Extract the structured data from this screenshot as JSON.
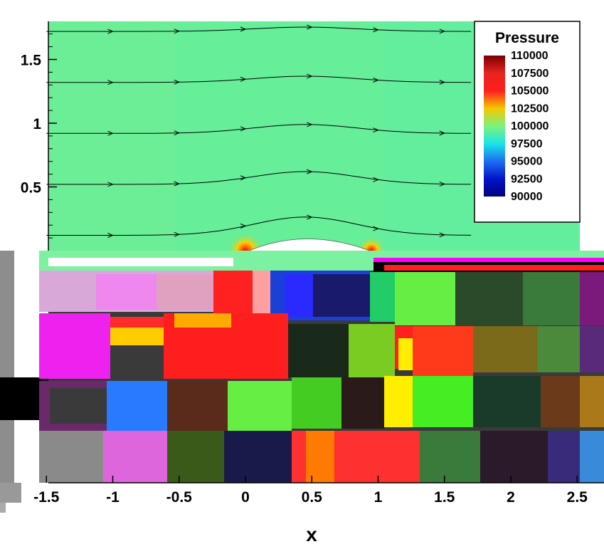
{
  "chart_data": {
    "type": "heatmap",
    "title": "",
    "xlabel": "x",
    "ylabel": "",
    "xlim": [
      -1.5,
      2.5
    ],
    "ylim": [
      -1.8,
      1.8
    ],
    "x_ticks": [
      "-1.5",
      "-1",
      "-0.5",
      "0",
      "0.5",
      "1",
      "1.5",
      "2",
      "2.5"
    ],
    "x_tick_values": [
      -1.5,
      -1,
      -0.5,
      0,
      0.5,
      1,
      1.5,
      2,
      2.5
    ],
    "y_ticks": [
      "1.5",
      "1",
      "0.5"
    ],
    "y_tick_values": [
      1.5,
      1,
      0.5
    ],
    "field_variable": "Pressure",
    "field_range": [
      90000,
      110000
    ],
    "freestream_value": 100000,
    "airfoil_chord": [
      0,
      1
    ],
    "streamline_y0": [
      0.12,
      0.52,
      0.92,
      1.32,
      1.72
    ],
    "legend": {
      "title": "Pressure",
      "placement": "top-right",
      "levels": [
        "110000",
        "107500",
        "105000",
        "102500",
        "100000",
        "97500",
        "95000",
        "92500",
        "90000"
      ],
      "colors": [
        "#7a0000",
        "#e8241e",
        "#ff1e1e",
        "#f6c800",
        "#7cf27c",
        "#19e6e6",
        "#1e6ef0",
        "#0014c8",
        "#000080"
      ]
    },
    "colors": {
      "freestream": "#66ee99",
      "suction_core": "#001aa8",
      "stagnation": "#ff2a00"
    }
  }
}
